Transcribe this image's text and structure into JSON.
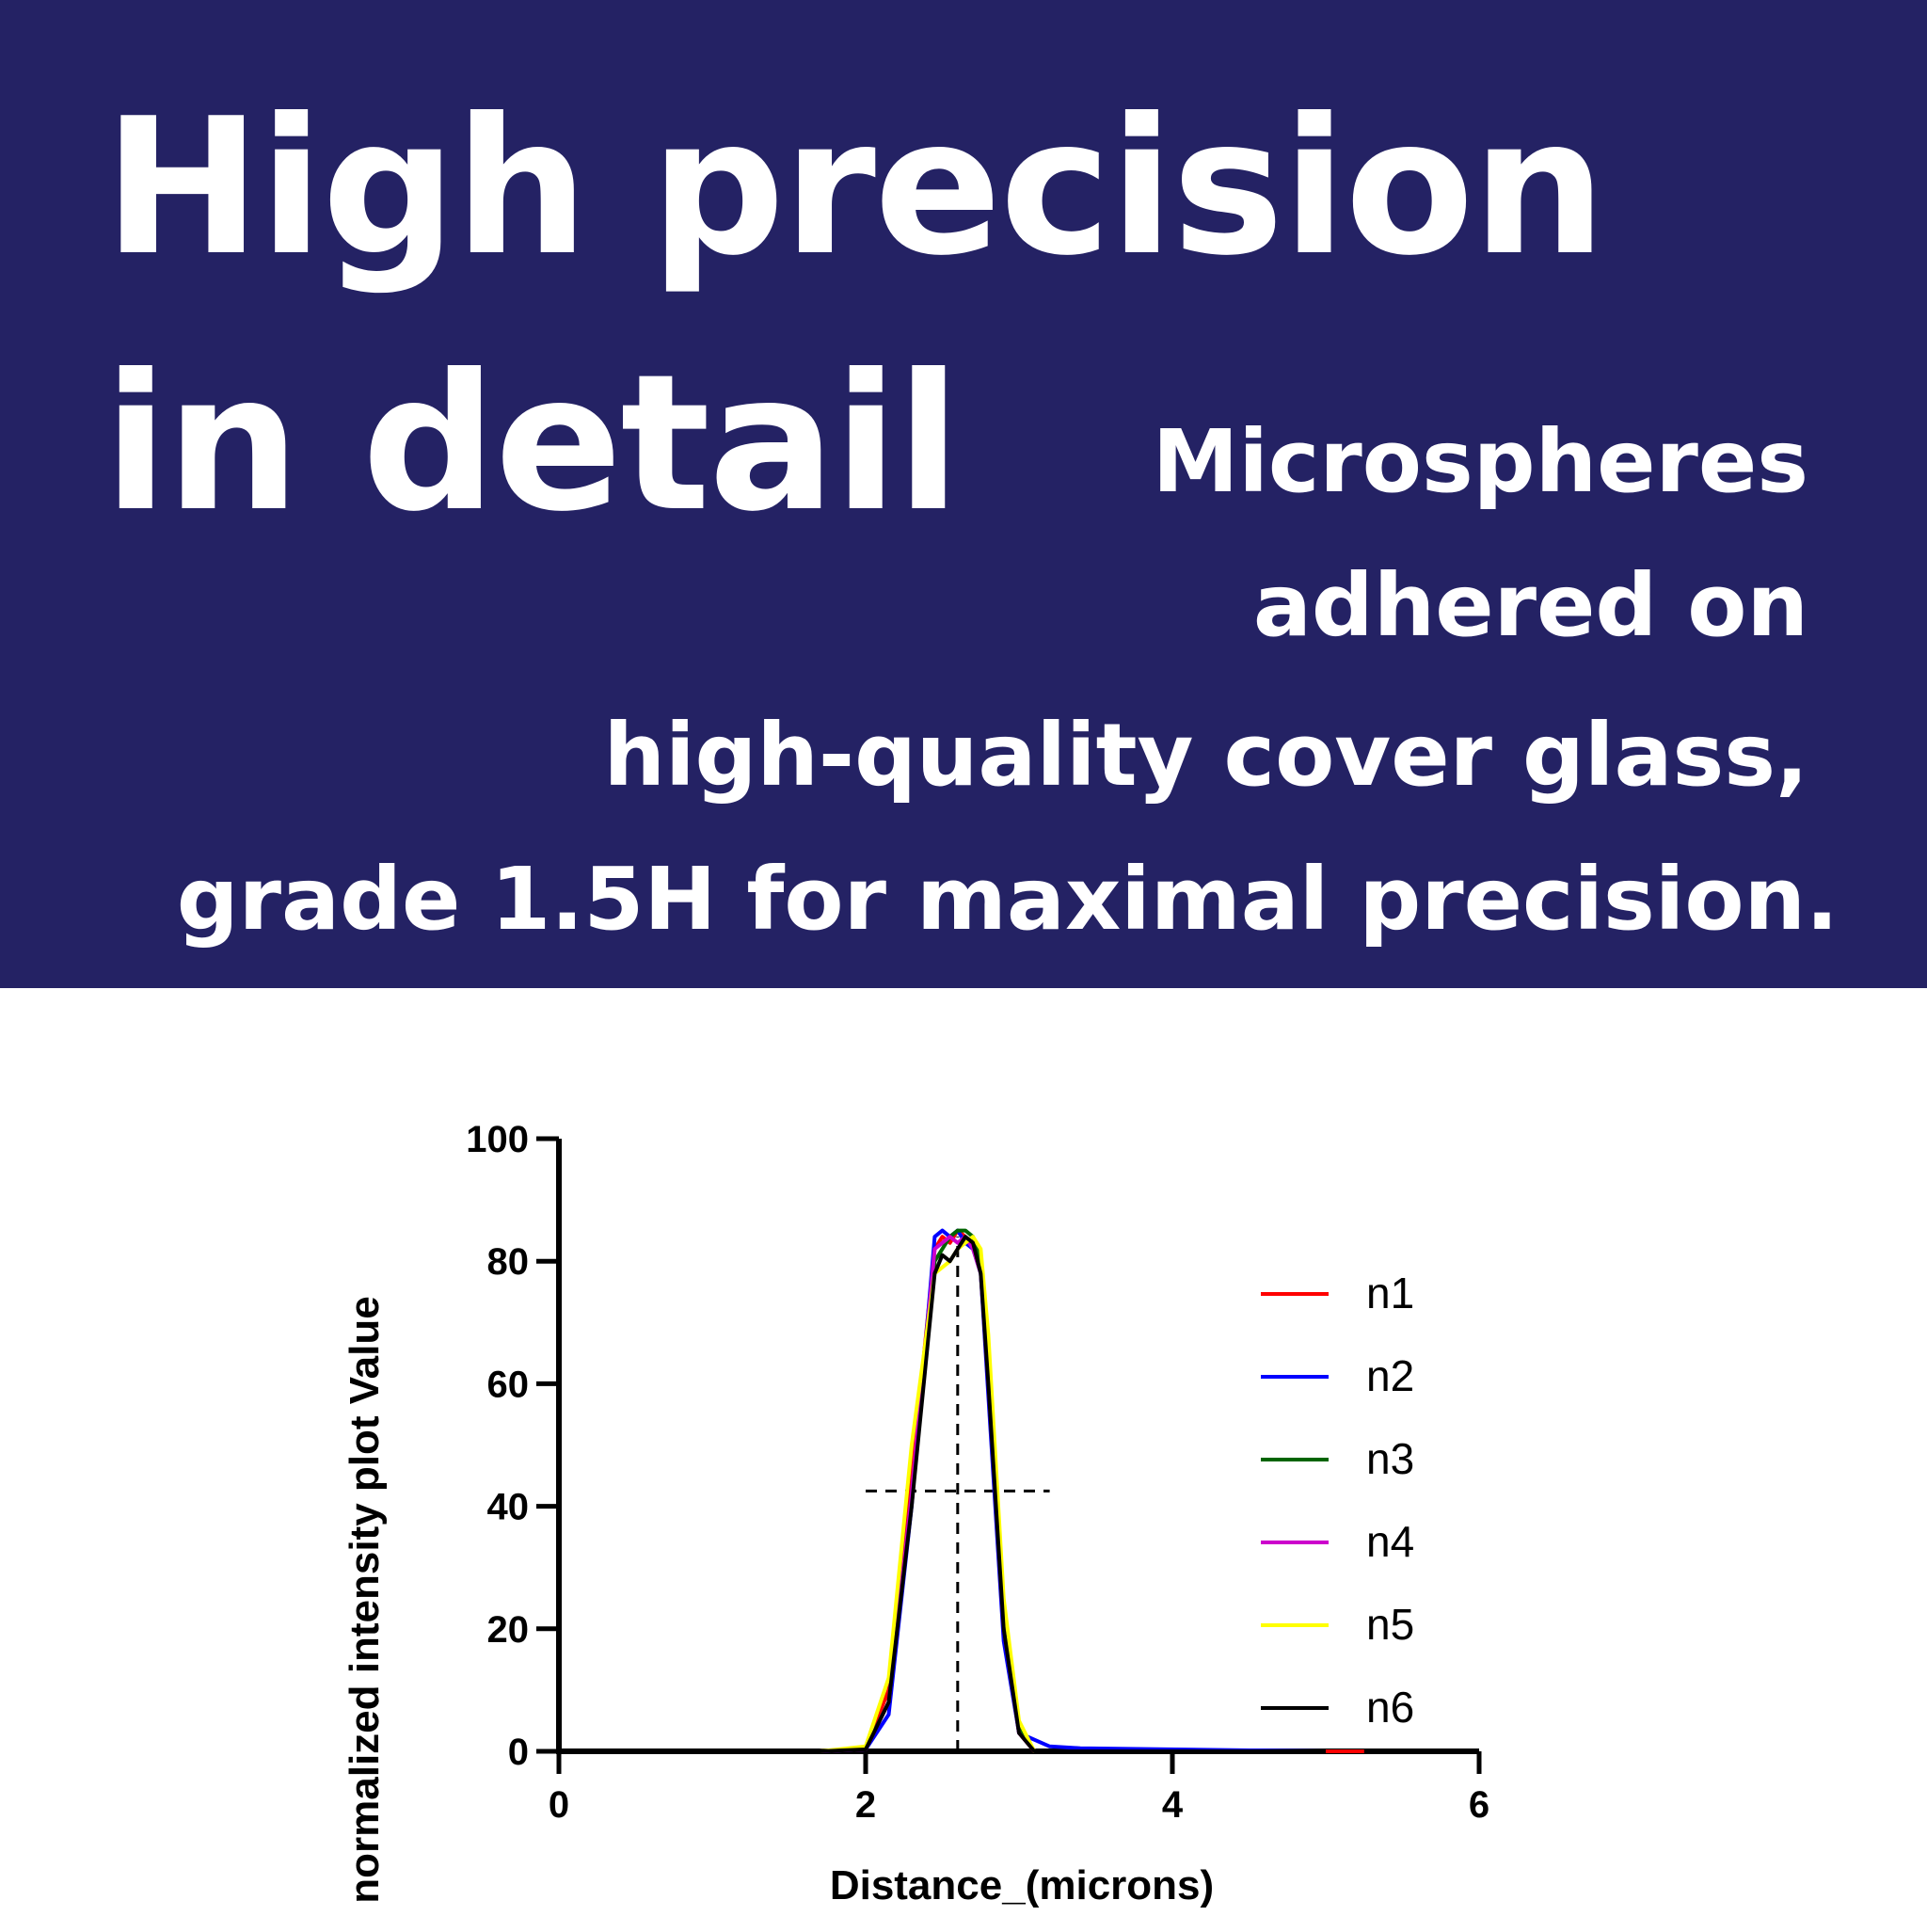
{
  "banner": {
    "headline_line1": "High precision",
    "headline_line2": "in detail",
    "sub_line1": "Microspheres",
    "sub_line2": "adhered on",
    "sub_line3": "high-quality cover glass,",
    "sub_line4": "grade 1.5H for maximal precision.",
    "background_color": "#242264",
    "text_color": "#ffffff"
  },
  "chart_data": {
    "type": "line",
    "title": "",
    "xlabel": "Distance_(microns)",
    "ylabel": "normalized intensity plot Value",
    "xlim": [
      0,
      6
    ],
    "ylim": [
      0,
      100
    ],
    "xticks": [
      0,
      2,
      4,
      6
    ],
    "yticks": [
      0,
      20,
      40,
      60,
      80,
      100
    ],
    "grid": false,
    "legend_position": "right",
    "series": [
      {
        "name": "n1",
        "color": "#ff0000",
        "x": [
          0,
          1.7,
          2.0,
          2.15,
          2.3,
          2.45,
          2.5,
          2.55,
          2.6,
          2.65,
          2.7,
          2.75,
          2.8,
          2.9,
          3.0,
          3.1,
          5.25
        ],
        "y": [
          0,
          0,
          0.5,
          10,
          45,
          82,
          84,
          83,
          85,
          84,
          83,
          80,
          60,
          20,
          3,
          0,
          0
        ]
      },
      {
        "name": "n2",
        "color": "#0000ff",
        "x": [
          0,
          1.7,
          2.0,
          2.15,
          2.3,
          2.45,
          2.5,
          2.55,
          2.6,
          2.65,
          2.7,
          2.75,
          2.8,
          2.9,
          3.0,
          3.2,
          3.4,
          5.0
        ],
        "y": [
          0,
          0,
          0.3,
          6,
          40,
          84,
          85,
          84,
          85,
          83,
          82,
          78,
          58,
          18,
          3,
          0.8,
          0.5,
          0
        ]
      },
      {
        "name": "n3",
        "color": "#006400",
        "x": [
          0,
          1.7,
          2.0,
          2.15,
          2.3,
          2.45,
          2.55,
          2.6,
          2.65,
          2.7,
          2.75,
          2.8,
          2.9,
          3.0,
          3.1,
          5.0
        ],
        "y": [
          0,
          0,
          0.5,
          8,
          42,
          80,
          84,
          85,
          85,
          84,
          80,
          62,
          22,
          4,
          0,
          0
        ]
      },
      {
        "name": "n4",
        "color": "#cc00cc",
        "x": [
          0,
          1.7,
          2.0,
          2.15,
          2.3,
          2.45,
          2.55,
          2.6,
          2.65,
          2.7,
          2.75,
          2.8,
          2.9,
          3.0,
          3.1,
          5.0
        ],
        "y": [
          0,
          0,
          0.3,
          8,
          42,
          82,
          84,
          83,
          84,
          82,
          78,
          60,
          20,
          3,
          0,
          0
        ]
      },
      {
        "name": "n5",
        "color": "#ffff00",
        "x": [
          0,
          1.7,
          2.0,
          2.15,
          2.3,
          2.45,
          2.55,
          2.6,
          2.65,
          2.7,
          2.75,
          2.8,
          2.9,
          3.0,
          3.1,
          5.0
        ],
        "y": [
          0,
          0,
          0.8,
          12,
          50,
          78,
          80,
          82,
          83,
          84,
          82,
          68,
          25,
          5,
          0,
          0
        ]
      },
      {
        "name": "n6",
        "color": "#000000",
        "x": [
          0,
          1.7,
          2.0,
          2.15,
          2.3,
          2.45,
          2.5,
          2.55,
          2.6,
          2.65,
          2.7,
          2.75,
          2.8,
          2.9,
          3.0,
          3.1,
          5.0
        ],
        "y": [
          0,
          0,
          0.3,
          8,
          40,
          78,
          81,
          80,
          82,
          84,
          83,
          78,
          60,
          20,
          3,
          0,
          0
        ]
      }
    ],
    "reference_lines": [
      {
        "orientation": "vertical",
        "x": 2.6,
        "y_range": [
          0,
          84
        ],
        "style": "dashed",
        "color": "#000000"
      },
      {
        "orientation": "horizontal",
        "y": 42.5,
        "x_range": [
          2.0,
          3.2
        ],
        "style": "dashed",
        "color": "#000000"
      }
    ]
  }
}
